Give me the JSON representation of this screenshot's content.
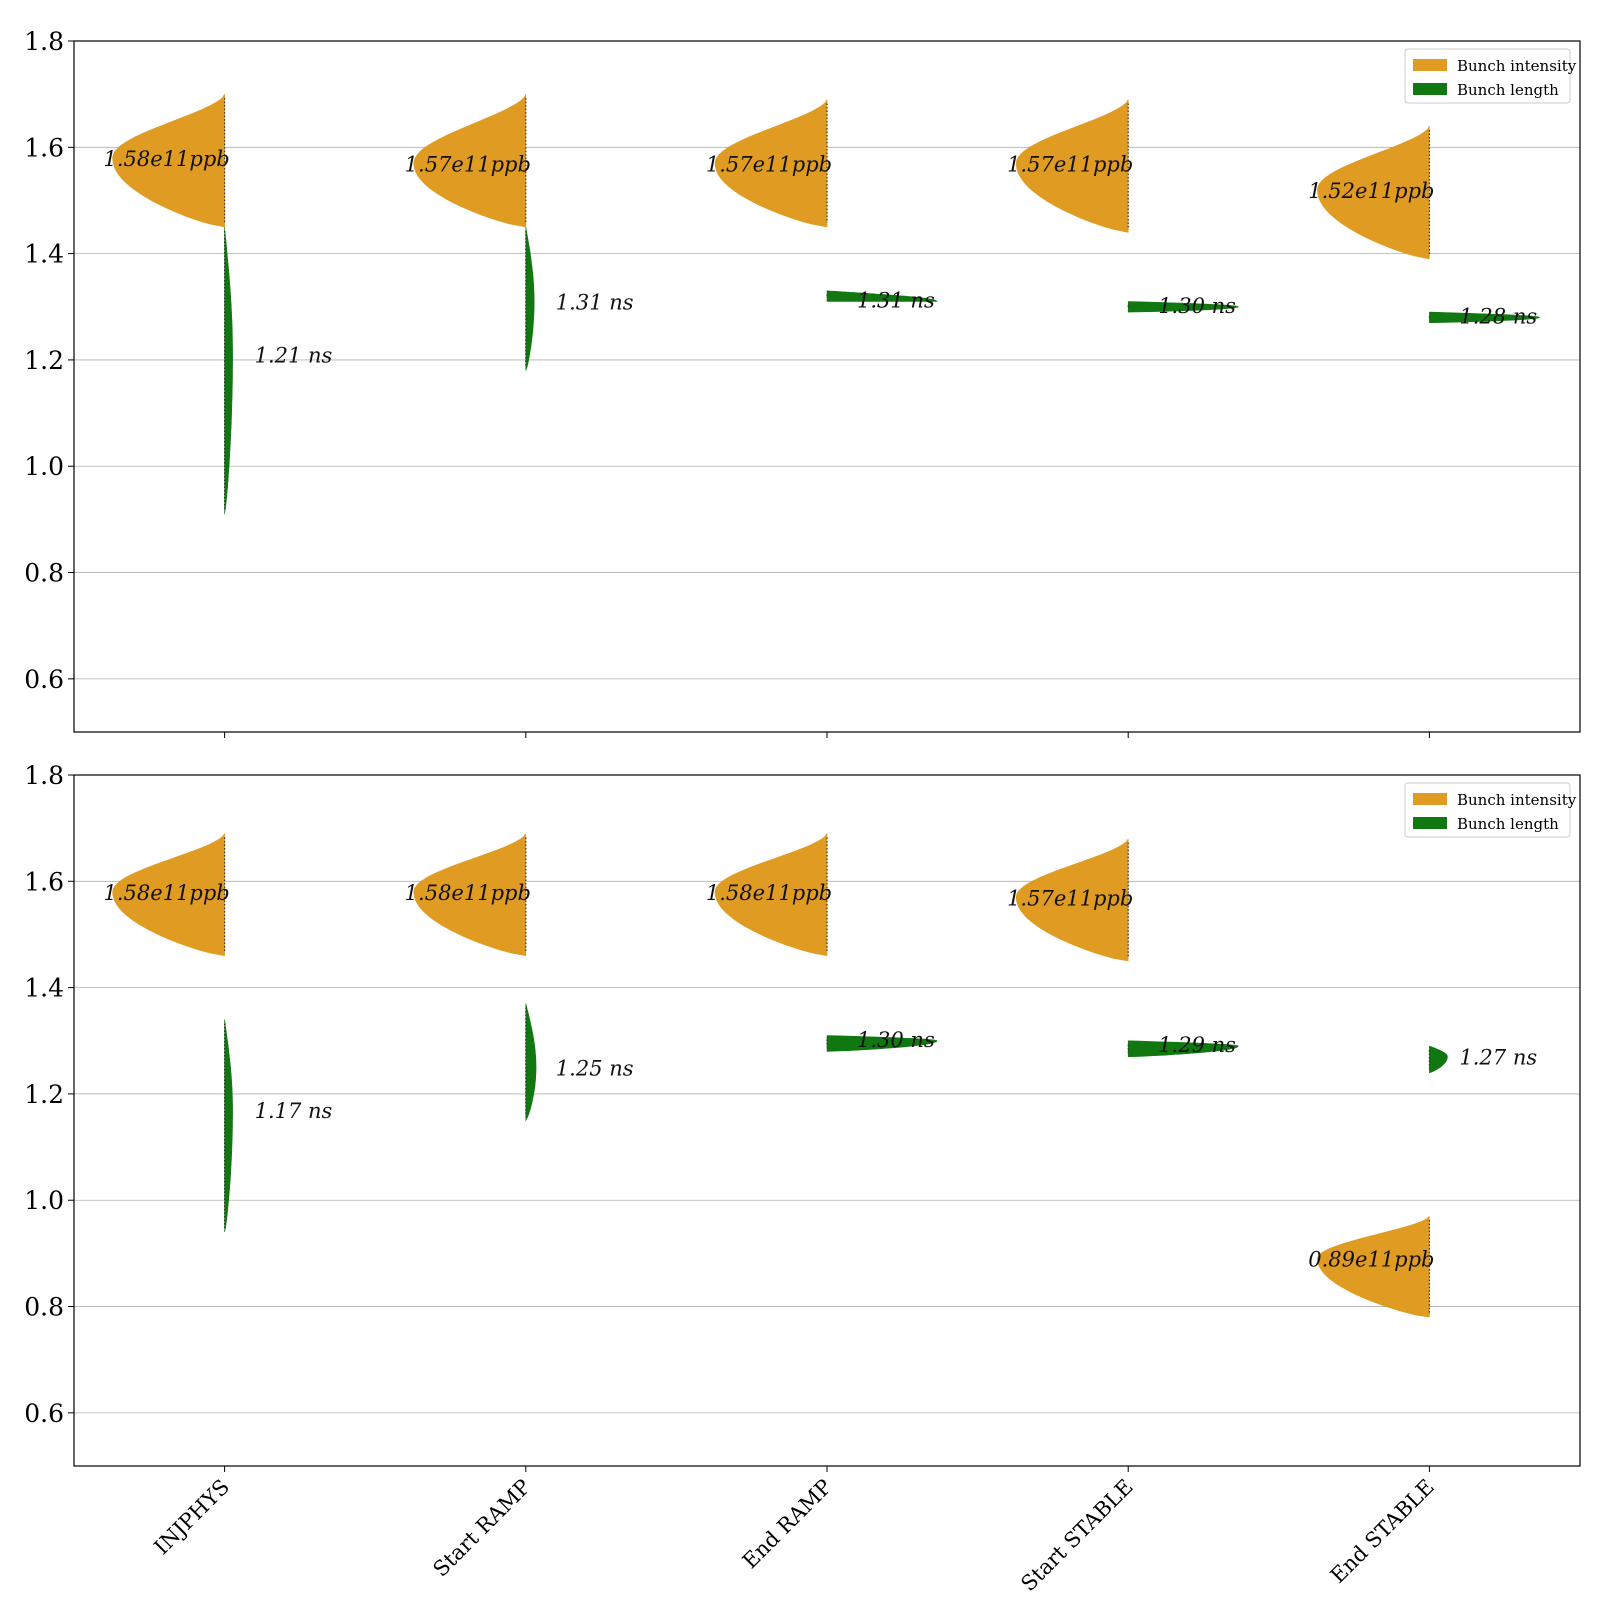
{
  "chart_data": [
    {
      "type": "violin",
      "ylim": [
        0.5,
        1.8
      ],
      "yticks": [
        0.6,
        0.8,
        1.0,
        1.2,
        1.4,
        1.6,
        1.8
      ],
      "ytick_labels": [
        "0.6",
        "0.8",
        "1.0",
        "1.2",
        "1.4",
        "1.6",
        "1.8"
      ],
      "categories": [
        "INJPHYS",
        "Start RAMP",
        "End RAMP",
        "Start STABLE",
        "End STABLE"
      ],
      "grid": "horizontal",
      "legend": "top-right",
      "series": [
        {
          "name": "Bunch intensity",
          "side": "left",
          "color": "#e09b23",
          "values": [
            1.58,
            1.57,
            1.57,
            1.57,
            1.52
          ],
          "range": [
            [
              1.45,
              1.7
            ],
            [
              1.45,
              1.7
            ],
            [
              1.45,
              1.69
            ],
            [
              1.44,
              1.69
            ],
            [
              1.39,
              1.64
            ]
          ],
          "labels": [
            "1.58e11ppb",
            "1.57e11ppb",
            "1.57e11ppb",
            "1.57e11ppb",
            "1.52e11ppb"
          ]
        },
        {
          "name": "Bunch length",
          "side": "right",
          "color": "#117711",
          "values": [
            1.21,
            1.31,
            1.31,
            1.3,
            1.28
          ],
          "range": [
            [
              0.91,
              1.45
            ],
            [
              1.18,
              1.45
            ],
            [
              1.31,
              1.33
            ],
            [
              1.29,
              1.31
            ],
            [
              1.27,
              1.29
            ]
          ],
          "labels": [
            "1.21 ns",
            "1.31 ns",
            "1.31 ns",
            "1.30 ns",
            "1.28 ns"
          ]
        }
      ]
    },
    {
      "type": "violin",
      "ylim": [
        0.5,
        1.8
      ],
      "yticks": [
        0.6,
        0.8,
        1.0,
        1.2,
        1.4,
        1.6,
        1.8
      ],
      "ytick_labels": [
        "0.6",
        "0.8",
        "1.0",
        "1.2",
        "1.4",
        "1.6",
        "1.8"
      ],
      "categories": [
        "INJPHYS",
        "Start RAMP",
        "End RAMP",
        "Start STABLE",
        "End STABLE"
      ],
      "grid": "horizontal",
      "legend": "top-right",
      "series": [
        {
          "name": "Bunch intensity",
          "side": "left",
          "color": "#e09b23",
          "values": [
            1.58,
            1.58,
            1.58,
            1.57,
            0.89
          ],
          "range": [
            [
              1.46,
              1.69
            ],
            [
              1.46,
              1.69
            ],
            [
              1.46,
              1.69
            ],
            [
              1.45,
              1.68
            ],
            [
              0.78,
              0.97
            ]
          ],
          "labels": [
            "1.58e11ppb",
            "1.58e11ppb",
            "1.58e11ppb",
            "1.57e11ppb",
            "0.89e11ppb"
          ]
        },
        {
          "name": "Bunch length",
          "side": "right",
          "color": "#117711",
          "values": [
            1.17,
            1.25,
            1.3,
            1.29,
            1.27
          ],
          "range": [
            [
              0.94,
              1.34
            ],
            [
              1.15,
              1.37
            ],
            [
              1.28,
              1.31
            ],
            [
              1.27,
              1.3
            ],
            [
              1.24,
              1.29
            ]
          ],
          "labels": [
            "1.17 ns",
            "1.25 ns",
            "1.30 ns",
            "1.29 ns",
            "1.27 ns"
          ]
        }
      ]
    }
  ]
}
